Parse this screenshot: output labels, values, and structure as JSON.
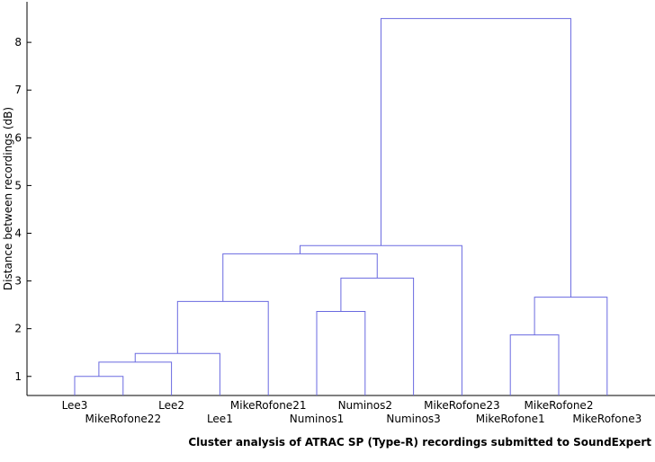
{
  "chart_data": {
    "type": "dendrogram",
    "title": "",
    "xlabel": "Cluster analysis of ATRAC SP (Type-R) recordings submitted to SoundExpert",
    "ylabel": "Distance between recordings (dB)",
    "ylim": [
      0.6,
      8.85
    ],
    "yticks": [
      1,
      2,
      3,
      4,
      5,
      6,
      7,
      8
    ],
    "grid": false,
    "link_color": "#6a6ae0",
    "leaves": [
      "Lee3",
      "MikeRofone22",
      "Lee2",
      "Lee1",
      "MikeRofone21",
      "Numinos1",
      "Numinos2",
      "Numinos3",
      "MikeRofone23",
      "MikeRofone1",
      "MikeRofone2",
      "MikeRofone3"
    ],
    "merges": [
      {
        "left": "Lee3",
        "right": "MikeRofone22",
        "height": 1.0
      },
      {
        "left": 12,
        "right": "Lee2",
        "height": 1.3
      },
      {
        "left": 13,
        "right": "Lee1",
        "height": 1.48
      },
      {
        "left": 14,
        "right": "MikeRofone21",
        "height": 2.57
      },
      {
        "left": "Numinos1",
        "right": "Numinos2",
        "height": 2.36
      },
      {
        "left": 16,
        "right": "Numinos3",
        "height": 3.06
      },
      {
        "left": 15,
        "right": 17,
        "height": 3.57
      },
      {
        "left": 18,
        "right": "MikeRofone23",
        "height": 3.74
      },
      {
        "left": "MikeRofone1",
        "right": "MikeRofone2",
        "height": 1.87
      },
      {
        "left": 20,
        "right": "MikeRofone3",
        "height": 2.66
      },
      {
        "left": 19,
        "right": 21,
        "height": 8.5
      }
    ]
  }
}
